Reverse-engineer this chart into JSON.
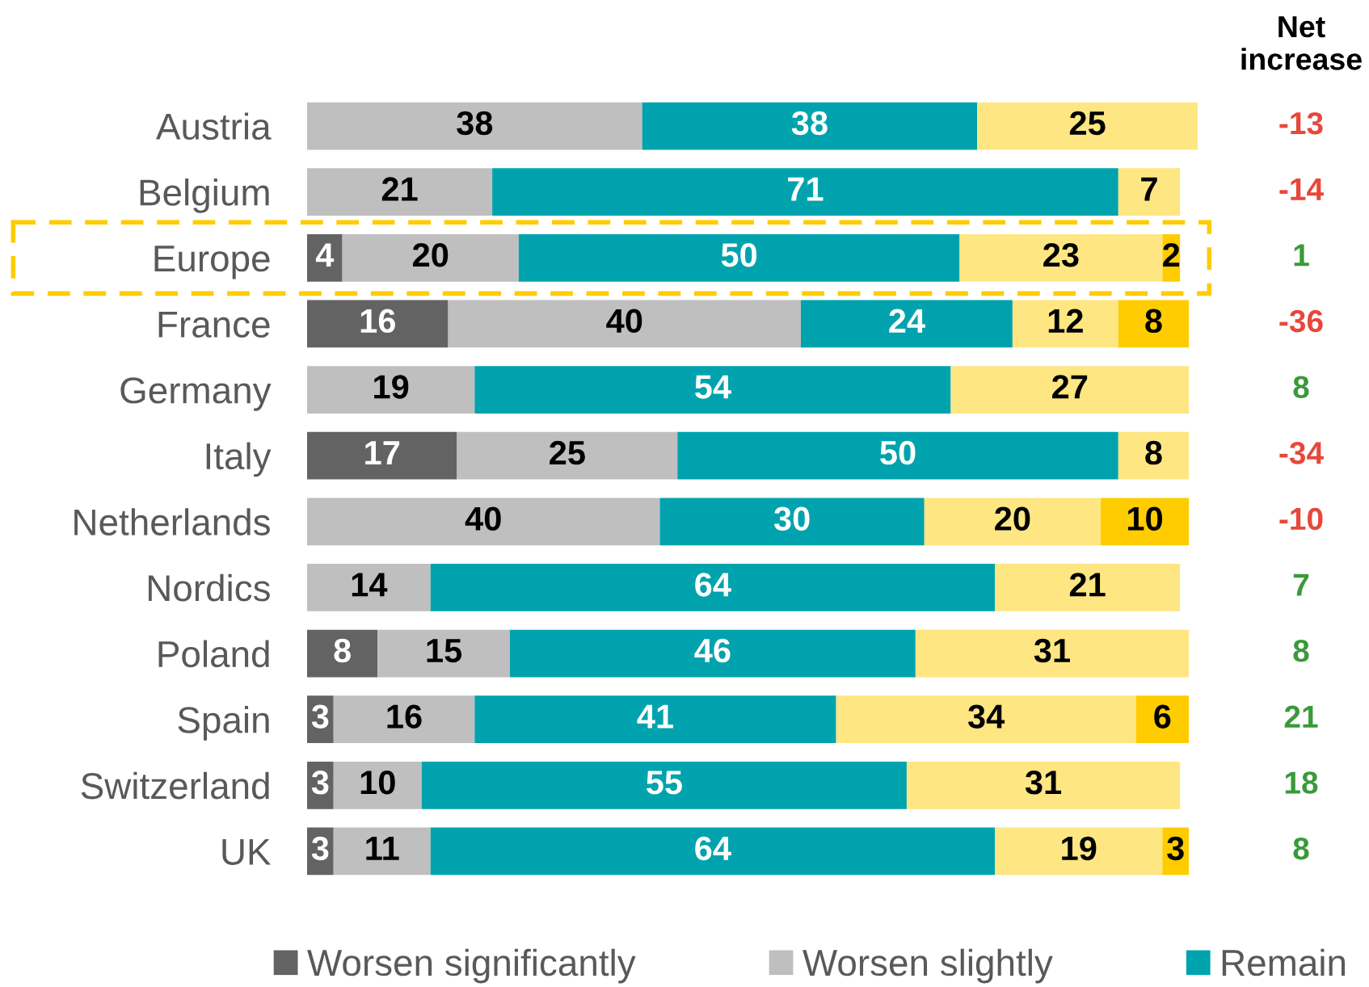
{
  "chart_data": {
    "type": "bar",
    "orientation": "horizontal",
    "stacked": true,
    "data_labels": true,
    "tick_labels": "y",
    "legend": "bottom",
    "categories": [
      "Austria",
      "Belgium",
      "Europe",
      "France",
      "Germany",
      "Italy",
      "Netherlands",
      "Nordics",
      "Poland",
      "Spain",
      "Switzerland",
      "UK"
    ],
    "series": [
      {
        "name": "Worsen significantly",
        "color": "#636363",
        "values": [
          null,
          null,
          4,
          16,
          null,
          17,
          null,
          null,
          8,
          3,
          3,
          3
        ]
      },
      {
        "name": "Worsen slightly",
        "color": "#bfbfbf",
        "values": [
          38,
          21,
          20,
          40,
          19,
          25,
          40,
          14,
          15,
          16,
          10,
          11
        ]
      },
      {
        "name": "Remain",
        "color": "#00a3ad",
        "values": [
          38,
          71,
          50,
          24,
          54,
          50,
          30,
          64,
          46,
          41,
          55,
          64
        ]
      },
      {
        "color": "#fee682",
        "values": [
          25,
          7,
          23,
          12,
          27,
          8,
          20,
          21,
          31,
          34,
          31,
          19
        ]
      },
      {
        "color": "#ffcc00",
        "values": [
          null,
          null,
          2,
          8,
          null,
          null,
          10,
          null,
          null,
          6,
          null,
          3
        ]
      }
    ],
    "annotations": [
      "Net\nincrease",
      "-13",
      "-14",
      "1",
      "-36",
      "8",
      "-34",
      "-10",
      "7",
      "8",
      "21",
      "18",
      "8"
    ]
  }
}
